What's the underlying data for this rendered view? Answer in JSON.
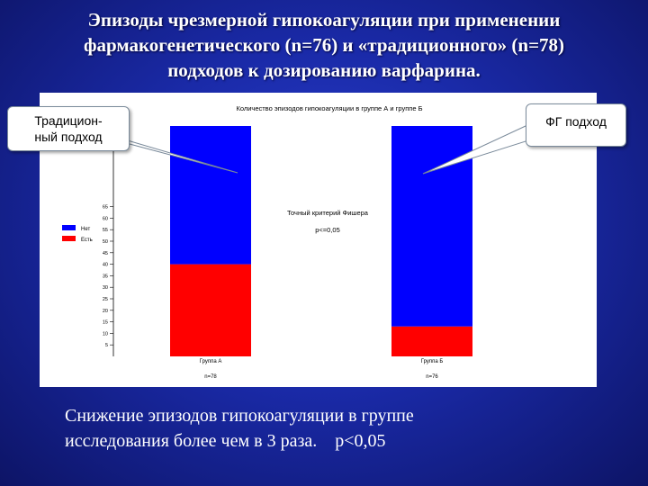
{
  "slide": {
    "title_lines": [
      "Эпизоды чрезмерной гипокоагуляции при применении",
      "фармакогенетического (n=76) и «традиционного» (n=78)",
      "подходов к дозированию варфарина."
    ],
    "callout_left_lines": [
      "Традицион-",
      "ный подход"
    ],
    "callout_right": "ФГ подход",
    "conclusion_lines": [
      "Снижение эпизодов гипокоагуляции в группе",
      "исследования более чем в 3 раза.    p<0,05"
    ]
  },
  "chart_data": {
    "type": "bar",
    "stacked": true,
    "title": "Количество эпизодов гипокоагуляции в группе А и группе Б",
    "categories": [
      "Группа А",
      "Группа Б"
    ],
    "category_sublabels": [
      "n=78",
      "n=76"
    ],
    "series": [
      {
        "name": "Есть",
        "color": "#ff0000",
        "values": [
          40,
          13
        ]
      },
      {
        "name": "Нет",
        "color": "#0000ff",
        "values": [
          60,
          87
        ]
      }
    ],
    "y_ticks": [
      5,
      10,
      15,
      20,
      25,
      30,
      35,
      40,
      45,
      50,
      55,
      60,
      65
    ],
    "ylim": [
      0,
      100
    ],
    "annotation_lines": [
      "Точный критерий Фишера",
      "p<=0,05"
    ],
    "legend_position": "left"
  }
}
